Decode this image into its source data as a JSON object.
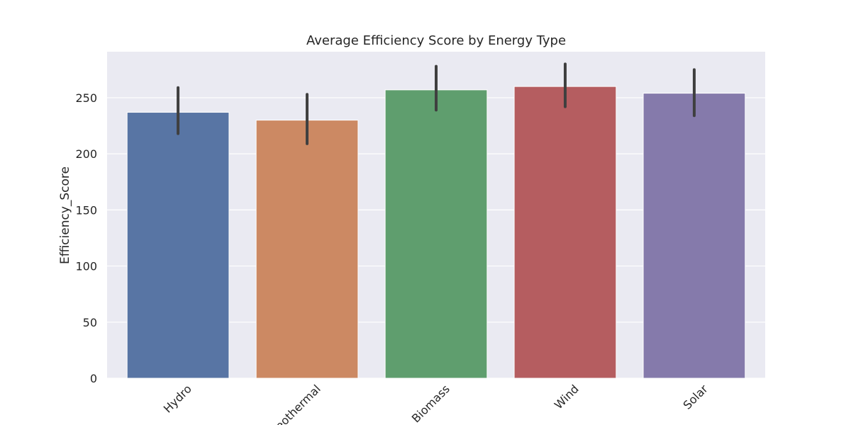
{
  "chart_data": {
    "type": "bar",
    "title": "Average Efficiency Score by Energy Type",
    "xlabel": "",
    "ylabel": "Efficiency_Score",
    "categories": [
      "Hydro",
      "Geothermal",
      "Biomass",
      "Wind",
      "Solar"
    ],
    "values": [
      237,
      230,
      257,
      260,
      254
    ],
    "error_low": [
      218,
      209,
      239,
      242,
      234
    ],
    "error_high": [
      259,
      253,
      278,
      280,
      275
    ],
    "ylim": [
      0,
      291
    ],
    "yticks": [
      0,
      50,
      100,
      150,
      200,
      250
    ],
    "grid": true,
    "legend": "none",
    "colors": [
      "#5875a4",
      "#cc8963",
      "#5f9e6e",
      "#b55d60",
      "#857aab"
    ],
    "background": "#eaeaf2",
    "error_color": "#3f3f3f"
  }
}
